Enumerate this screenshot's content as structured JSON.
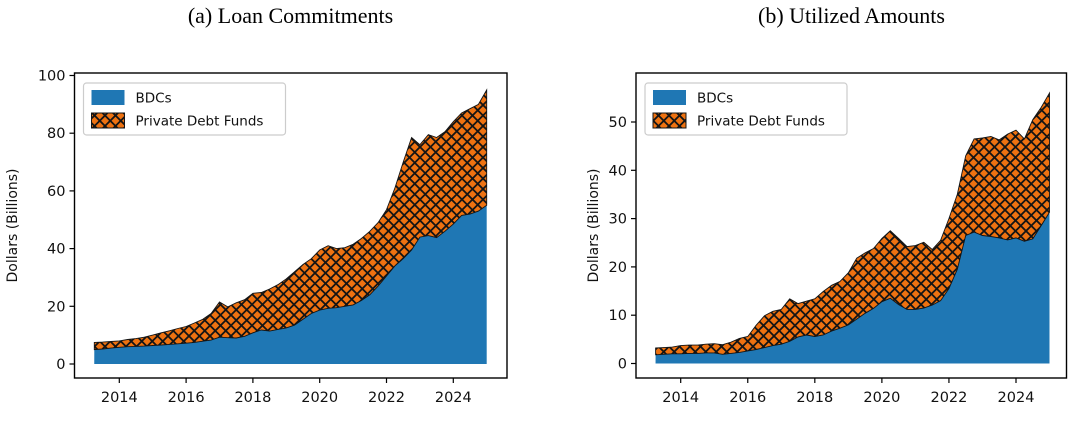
{
  "figure": {
    "panels": [
      {
        "title": "(a) Loan Commitments",
        "ylabel": "Dollars (Billions)"
      },
      {
        "title": "(b) Utilized Amounts",
        "ylabel": "Dollars (Billions)"
      }
    ]
  },
  "colors": {
    "bdc_fill": "#1f77b4",
    "pdf_fill": "#ee7211",
    "hatch_line": "#141414",
    "axis": "#000000",
    "legend_border": "#cccccc",
    "legend_bg": "#ffffff"
  },
  "chart_data": [
    {
      "type": "area",
      "stacked": true,
      "title": "(a) Loan Commitments",
      "xlabel": "",
      "ylabel": "Dollars (Billions)",
      "legend_position": "upper left",
      "grid": false,
      "xticks": [
        2014,
        2016,
        2018,
        2020,
        2022,
        2024
      ],
      "yticks": [
        0,
        20,
        40,
        60,
        80,
        100
      ],
      "xlim": [
        2012.6,
        2025.6
      ],
      "ylim": [
        -5,
        101
      ],
      "x": [
        2013.25,
        2013.5,
        2013.75,
        2014,
        2014.25,
        2014.5,
        2014.75,
        2015,
        2015.25,
        2015.5,
        2015.75,
        2016,
        2016.25,
        2016.5,
        2016.75,
        2017,
        2017.25,
        2017.5,
        2017.75,
        2018,
        2018.25,
        2018.5,
        2018.75,
        2019,
        2019.25,
        2019.5,
        2019.75,
        2020,
        2020.25,
        2020.5,
        2020.75,
        2021,
        2021.25,
        2021.5,
        2021.75,
        2022,
        2022.25,
        2022.5,
        2022.75,
        2023,
        2023.25,
        2023.5,
        2023.75,
        2024,
        2024.25,
        2024.5,
        2024.75,
        2025
      ],
      "series": [
        {
          "name": "BDCs",
          "values": [
            5,
            5.2,
            5.5,
            5.8,
            6,
            6.1,
            6.2,
            6.4,
            6.6,
            6.8,
            7,
            7.2,
            7.5,
            7.9,
            8.3,
            9.3,
            9.1,
            9,
            9.6,
            10.8,
            11.8,
            11.4,
            12,
            12.5,
            13.5,
            15.5,
            17.5,
            18.7,
            19.3,
            19.5,
            20,
            20.5,
            22,
            24,
            27,
            30.5,
            34,
            36.5,
            39.5,
            44,
            44.5,
            43.8,
            46,
            48.5,
            51.5,
            52,
            53,
            55
          ]
        },
        {
          "name": "Private Debt Funds",
          "values": [
            2.5,
            2.4,
            2.3,
            2.2,
            2.5,
            2.7,
            3.1,
            3.6,
            4.2,
            4.7,
            5.3,
            5.8,
            6.7,
            7.6,
            9.2,
            12.2,
            10.7,
            12.2,
            12.7,
            13.7,
            13,
            14.6,
            15.5,
            17,
            18.5,
            19,
            19,
            20.8,
            21.7,
            20.5,
            20.3,
            21,
            21.5,
            22,
            22,
            23,
            27,
            33.5,
            39,
            32,
            35,
            34.7,
            34.5,
            35.5,
            35.5,
            36.5,
            37,
            40
          ]
        }
      ]
    },
    {
      "type": "area",
      "stacked": true,
      "title": "(b) Utilized Amounts",
      "xlabel": "",
      "ylabel": "Dollars (Billions)",
      "legend_position": "upper left",
      "grid": false,
      "xticks": [
        2014,
        2016,
        2018,
        2020,
        2022,
        2024
      ],
      "yticks": [
        0,
        10,
        20,
        30,
        40,
        50
      ],
      "xlim": [
        2012.7,
        2025.5
      ],
      "ylim": [
        -3,
        60
      ],
      "x": [
        2013.25,
        2013.5,
        2013.75,
        2014,
        2014.25,
        2014.5,
        2014.75,
        2015,
        2015.25,
        2015.5,
        2015.75,
        2016,
        2016.25,
        2016.5,
        2016.75,
        2017,
        2017.25,
        2017.5,
        2017.75,
        2018,
        2018.25,
        2018.5,
        2018.75,
        2019,
        2019.25,
        2019.5,
        2019.75,
        2020,
        2020.25,
        2020.5,
        2020.75,
        2021,
        2021.25,
        2021.5,
        2021.75,
        2022,
        2022.25,
        2022.5,
        2022.75,
        2023,
        2023.25,
        2023.5,
        2023.75,
        2024,
        2024.25,
        2024.5,
        2024.75,
        2025
      ],
      "series": [
        {
          "name": "BDCs",
          "values": [
            1.8,
            1.9,
            2,
            2,
            2.1,
            2.1,
            2.2,
            2.2,
            1.9,
            2.1,
            2.3,
            2.6,
            2.9,
            3.3,
            3.7,
            4,
            4.6,
            5.5,
            5.9,
            5.6,
            5.9,
            6.7,
            7.3,
            8,
            9.2,
            10.4,
            11.4,
            12.8,
            13.5,
            12.2,
            11.2,
            11.2,
            11.5,
            12.1,
            13,
            15.5,
            19.5,
            26.5,
            27.2,
            26.5,
            26.3,
            26,
            25.6,
            26,
            25.3,
            25.8,
            28.5,
            31.3
          ]
        },
        {
          "name": "Private Debt Funds",
          "values": [
            1.4,
            1.4,
            1.4,
            1.7,
            1.7,
            1.7,
            1.8,
            1.9,
            2,
            2.3,
            2.9,
            3,
            5,
            6.6,
            7.1,
            7.2,
            8.8,
            6.9,
            7,
            7.8,
            9,
            9.5,
            9.7,
            10.8,
            12.6,
            12.5,
            12.4,
            13.1,
            14,
            13.7,
            13,
            13.2,
            13.6,
            11.5,
            12.5,
            14.5,
            15.5,
            16.5,
            19.3,
            20.2,
            20.7,
            20.3,
            21.9,
            22.3,
            21.2,
            24.7,
            24.5,
            24.7
          ]
        }
      ]
    }
  ]
}
